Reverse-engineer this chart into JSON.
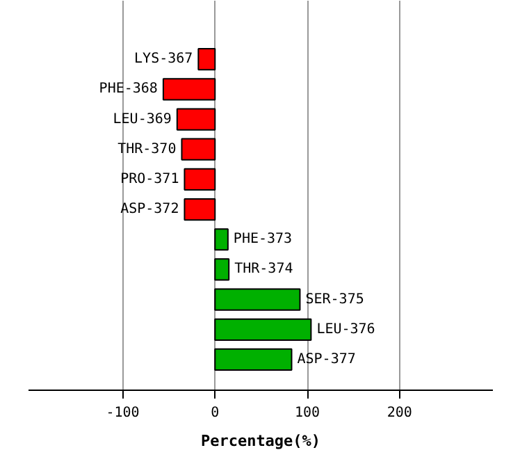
{
  "chart_data": {
    "type": "bar",
    "orientation": "horizontal",
    "xlabel": "Percentage(%)",
    "categories": [
      "LYS-367",
      "PHE-368",
      "LEU-369",
      "THR-370",
      "PRO-371",
      "ASP-372",
      "PHE-373",
      "THR-374",
      "SER-375",
      "LEU-376",
      "ASP-377"
    ],
    "values": [
      -18,
      -56,
      -41,
      -36,
      -33,
      -33,
      14,
      15,
      92,
      104,
      83
    ],
    "colors": [
      "#ff0000",
      "#ff0000",
      "#ff0000",
      "#ff0000",
      "#ff0000",
      "#ff0000",
      "#00b000",
      "#00b000",
      "#00b000",
      "#00b000",
      "#00b000"
    ],
    "xlim": [
      -202,
      301
    ],
    "xticks": [
      -100,
      0,
      100,
      200
    ],
    "grid": "x"
  }
}
